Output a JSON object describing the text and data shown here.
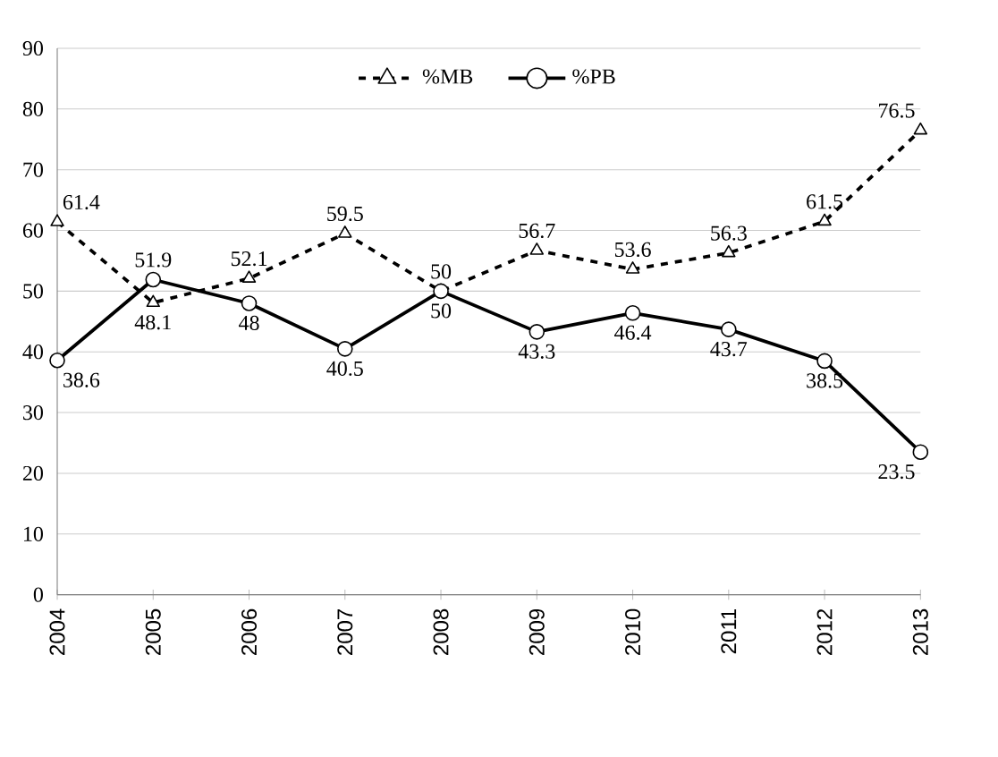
{
  "chart_data": {
    "type": "line",
    "categories": [
      "2004",
      "2005",
      "2006",
      "2007",
      "2008",
      "2009",
      "2010",
      "2011",
      "2012",
      "2013"
    ],
    "series": [
      {
        "name": "%MB",
        "color": "#000000",
        "marker": "triangle",
        "line_style": "dashed",
        "values": [
          61.4,
          48.1,
          52.1,
          59.5,
          50,
          56.7,
          53.6,
          56.3,
          61.5,
          76.5
        ]
      },
      {
        "name": "%PB",
        "color": "#000000",
        "marker": "circle",
        "line_style": "solid",
        "values": [
          38.6,
          51.9,
          48,
          40.5,
          50,
          43.3,
          46.4,
          43.7,
          38.5,
          23.5
        ]
      }
    ],
    "ylim": [
      0,
      90
    ],
    "yticks": [
      0,
      10,
      20,
      30,
      40,
      50,
      60,
      70,
      80,
      90
    ],
    "grid": "y",
    "legend": "top",
    "data_labels": true
  }
}
